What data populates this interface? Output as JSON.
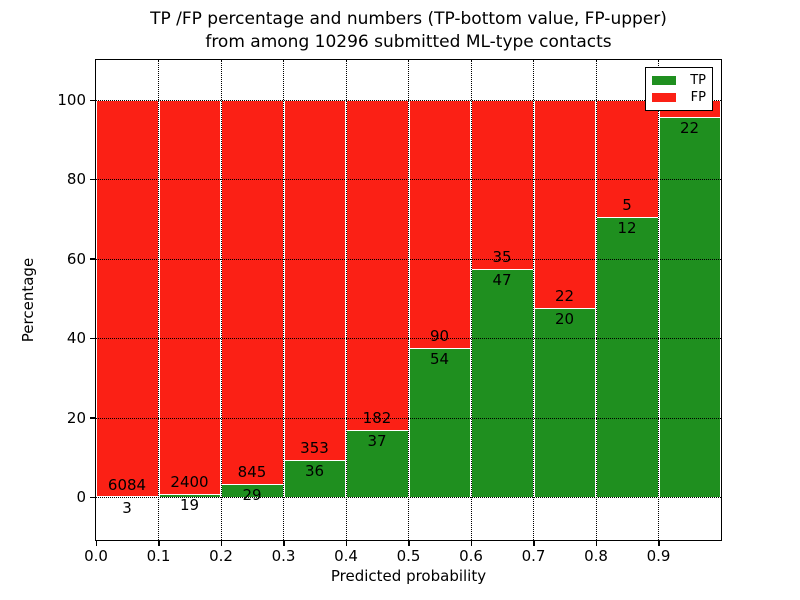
{
  "chart_data": {
    "type": "bar",
    "stacked": true,
    "title_line1": "TP /FP percentage and numbers (TP-bottom value, FP-upper)",
    "title_line2": "from among 10296 submitted ML-type contacts",
    "xlabel": "Predicted probability",
    "ylabel": "Percentage",
    "x_tick_labels": [
      "0.0",
      "0.1",
      "0.2",
      "0.3",
      "0.4",
      "0.5",
      "0.6",
      "0.7",
      "0.8",
      "0.9"
    ],
    "y_tick_values": [
      0,
      20,
      40,
      60,
      80,
      100
    ],
    "xlim": [
      0.0,
      1.0
    ],
    "ylim": [
      -10.8,
      110.1
    ],
    "grid_style": "dotted",
    "colors": {
      "tp": "#1f8f1f",
      "fp": "#fb2015",
      "grid": "#000000",
      "background": "#ffffff"
    },
    "legend": {
      "position": "upper-right",
      "entries": [
        {
          "label": "TP",
          "color": "#1f8f1f"
        },
        {
          "label": "FP",
          "color": "#fb2015"
        }
      ]
    },
    "bins": [
      {
        "range": "0.0-0.1",
        "tp": 3,
        "fp": 6084,
        "tp_pct": 0.05
      },
      {
        "range": "0.1-0.2",
        "tp": 19,
        "fp": 2400,
        "tp_pct": 0.79
      },
      {
        "range": "0.2-0.3",
        "tp": 29,
        "fp": 845,
        "tp_pct": 3.32
      },
      {
        "range": "0.3-0.4",
        "tp": 36,
        "fp": 353,
        "tp_pct": 9.25
      },
      {
        "range": "0.4-0.5",
        "tp": 37,
        "fp": 182,
        "tp_pct": 16.89
      },
      {
        "range": "0.5-0.6",
        "tp": 54,
        "fp": 90,
        "tp_pct": 37.5
      },
      {
        "range": "0.6-0.7",
        "tp": 47,
        "fp": 35,
        "tp_pct": 57.32
      },
      {
        "range": "0.7-0.8",
        "tp": 20,
        "fp": 22,
        "tp_pct": 47.62
      },
      {
        "range": "0.8-0.9",
        "tp": 12,
        "fp": 5,
        "tp_pct": 70.59
      },
      {
        "range": "0.9-1.0",
        "tp": 22,
        "fp": null,
        "tp_pct": 95.65
      }
    ]
  }
}
